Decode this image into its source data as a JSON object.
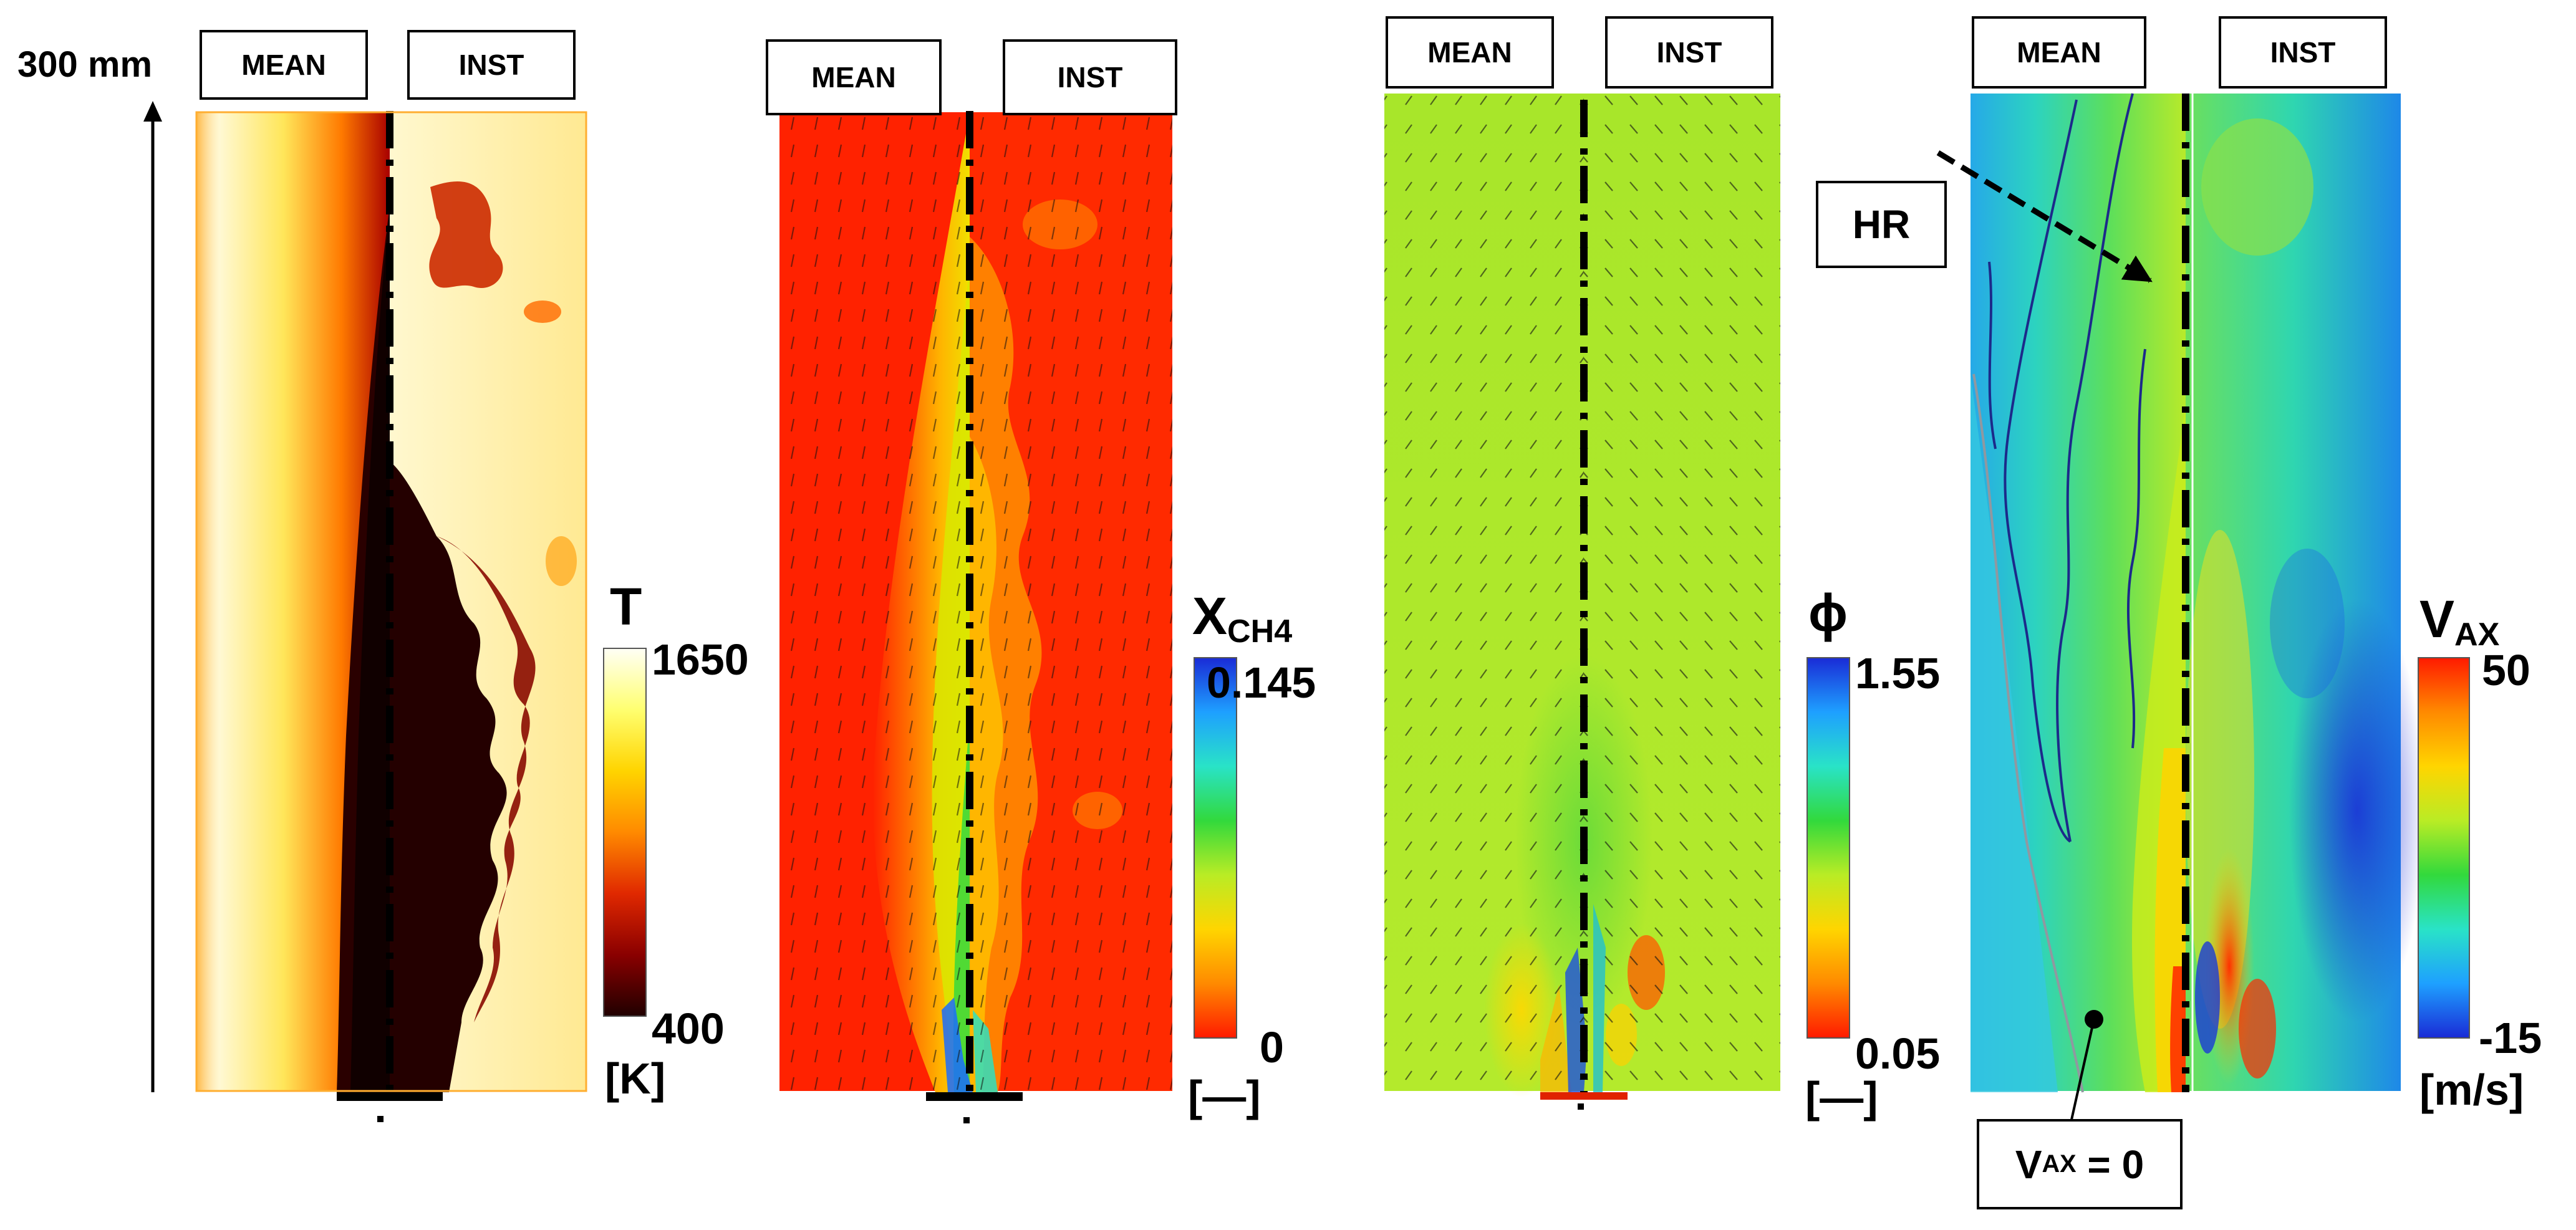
{
  "scale": {
    "label": "300 mm"
  },
  "header_labels": {
    "mean": "MEAN",
    "inst": "INST"
  },
  "panels": [
    {
      "id": "temperature",
      "colorbar": {
        "symbol": "T",
        "sub": "",
        "max": "1650",
        "min": "400",
        "unit": "[K]",
        "colors": [
          "#fffff6",
          "#ffff70",
          "#ffd400",
          "#ff8a00",
          "#e02800",
          "#8a0000",
          "#200000"
        ]
      }
    },
    {
      "id": "methane",
      "colorbar": {
        "symbol": "X",
        "sub": "CH4",
        "max": "0.145",
        "min": "0",
        "unit": "[—]",
        "colors": [
          "#1a2bd6",
          "#1ea0ff",
          "#29e3c7",
          "#32d93c",
          "#b9ec25",
          "#ffd500",
          "#ff8a00",
          "#ff1a00"
        ]
      }
    },
    {
      "id": "equivalence-ratio",
      "colorbar": {
        "symbol": "ϕ",
        "sub": "",
        "max": "1.55",
        "min": "0.05",
        "unit": "[—]",
        "colors": [
          "#1a2bd6",
          "#1ea0ff",
          "#29e3c7",
          "#32d93c",
          "#b9ec25",
          "#ffd500",
          "#ff8a00",
          "#ff1a00"
        ]
      }
    },
    {
      "id": "axial-velocity",
      "colorbar": {
        "symbol": "V",
        "sub": "AX",
        "max": "50",
        "min": "-15",
        "unit": "[m/s]",
        "colors": [
          "#ff1a00",
          "#ff8a00",
          "#ffd500",
          "#b9ec25",
          "#32d93c",
          "#29e3c7",
          "#1ea0ff",
          "#1a2bd6"
        ]
      }
    }
  ],
  "annotations": {
    "hr": "HR",
    "vax_zero": {
      "prefix": "V",
      "sub": "AX",
      "suffix": " = 0"
    }
  }
}
